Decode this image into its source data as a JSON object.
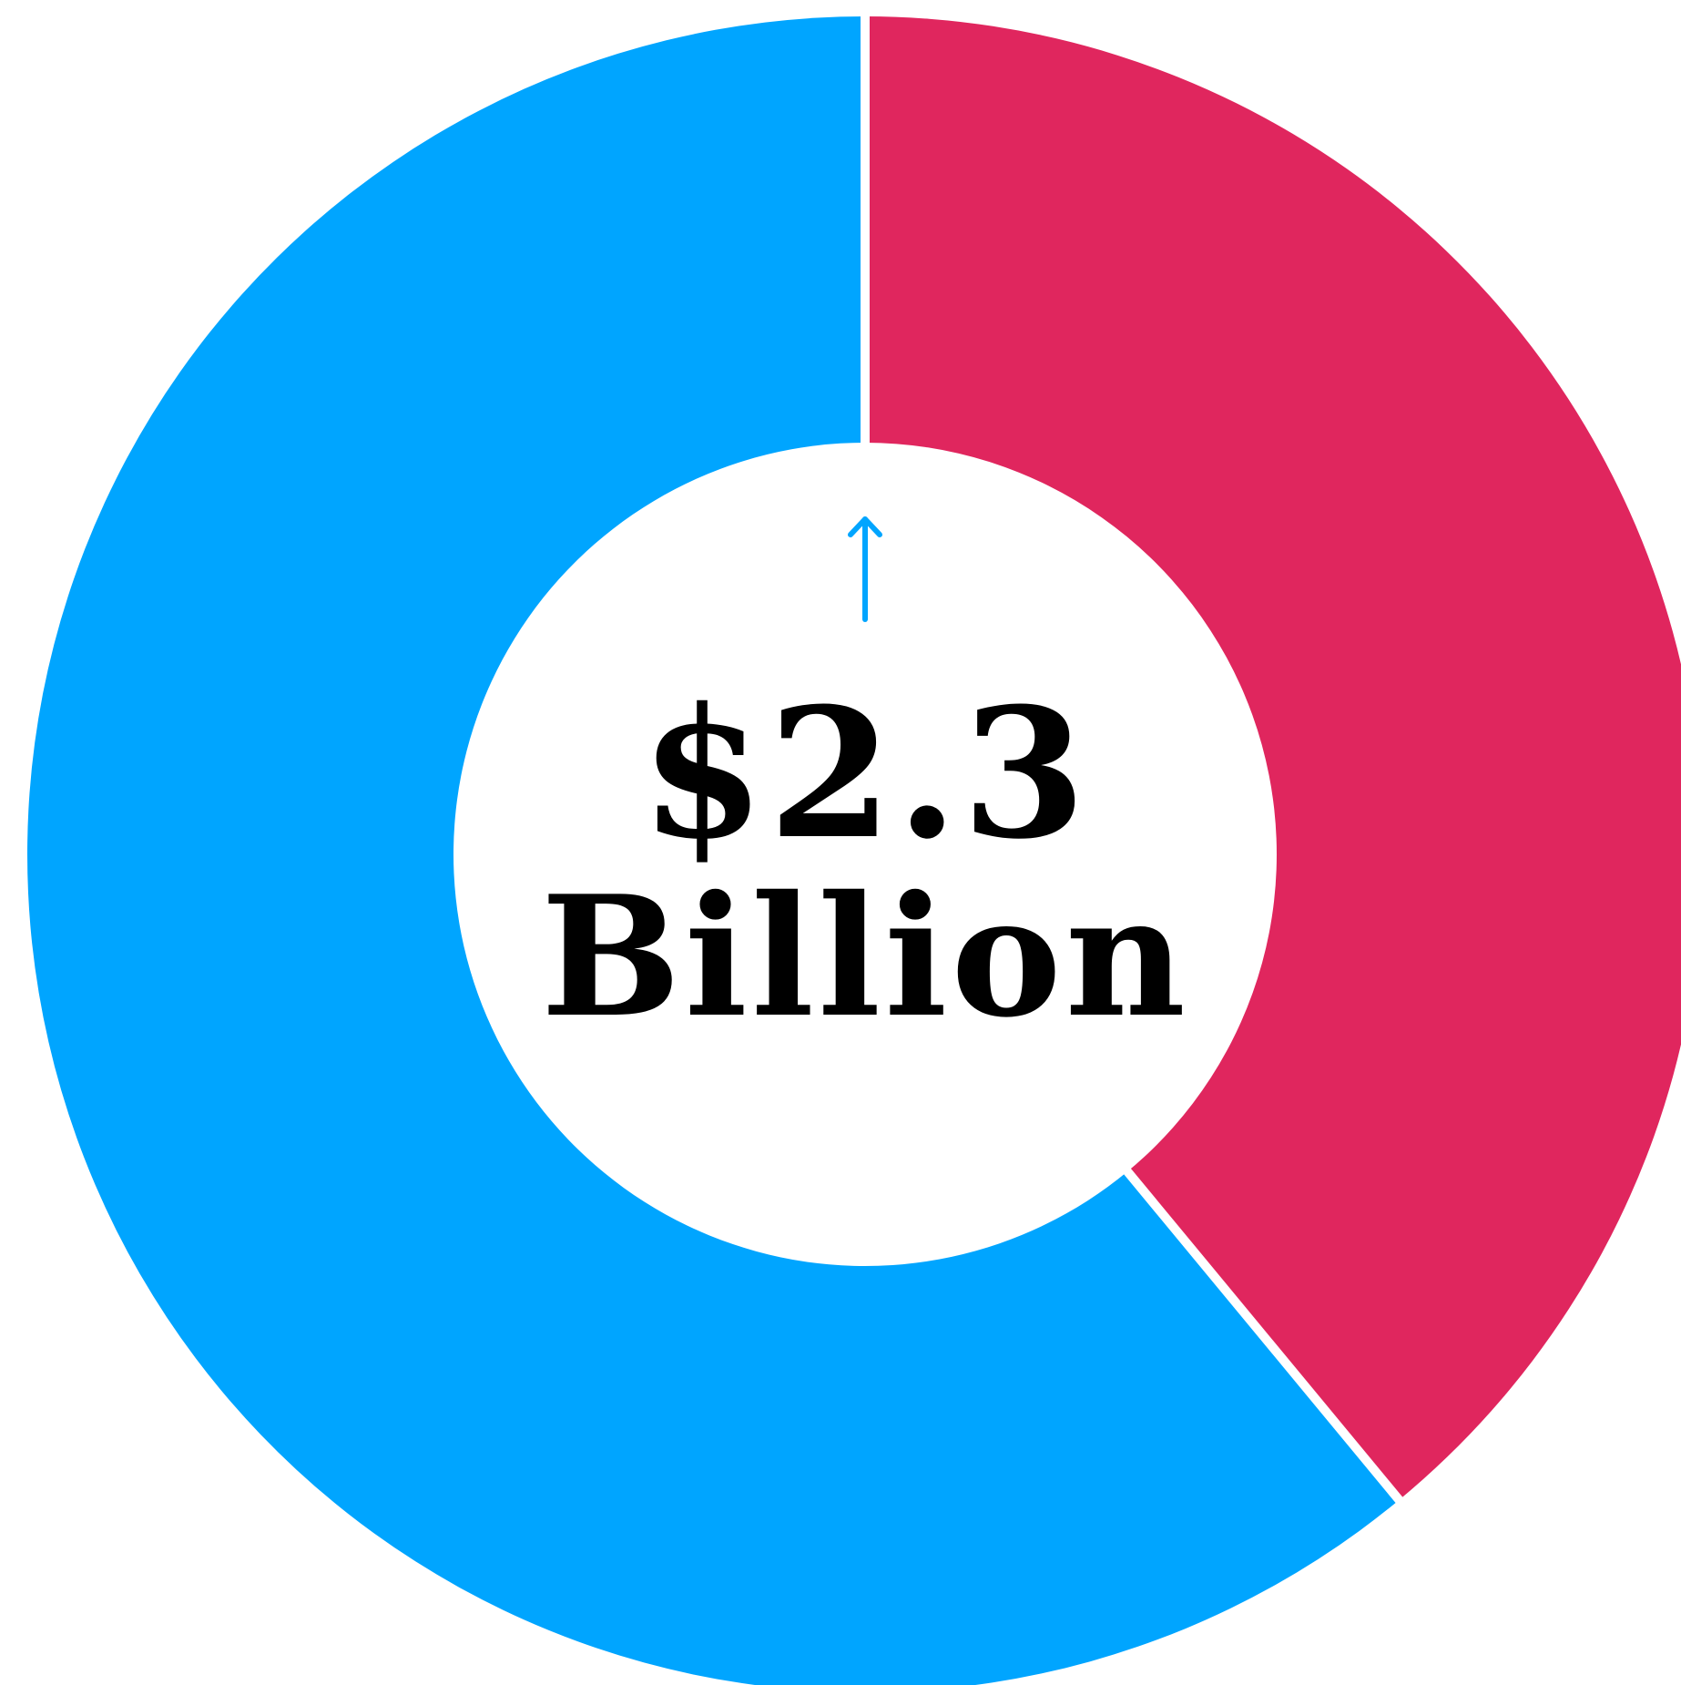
{
  "chart_data": {
    "type": "pie",
    "subtype": "donut",
    "slices": [
      {
        "share": 0.39,
        "color": "#E0265E"
      },
      {
        "share": 0.61,
        "color": "#00A5FF"
      }
    ],
    "start": "top",
    "direction": "clockwise",
    "indicator": {
      "type": "arrow-up",
      "color": "#00A5FF"
    },
    "center_text": {
      "value": "$2.3",
      "unit": "Billion"
    }
  }
}
